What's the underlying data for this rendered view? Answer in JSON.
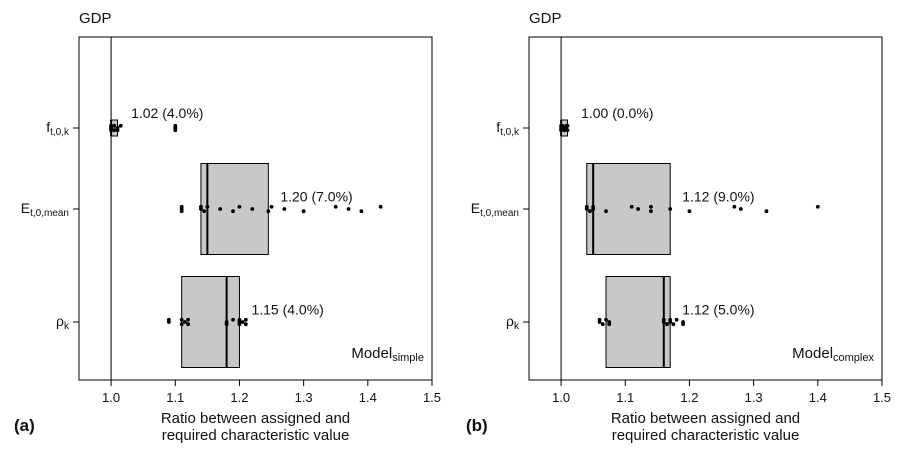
{
  "chart_data": [
    {
      "type": "boxplot",
      "panel_label": "(a)",
      "title": "GDP",
      "xlabel_lines": [
        "Ratio between assigned and",
        "required characteristic value"
      ],
      "xlim": [
        0.95,
        1.5
      ],
      "xticks": [
        "1.0",
        "1.1",
        "1.2",
        "1.3",
        "1.4",
        "1.5"
      ],
      "reference_line": 1.0,
      "model_label": {
        "main": "Model",
        "sub": "simple"
      },
      "categories": [
        {
          "label_main": "f",
          "label_sub": "t,0,k",
          "q1": 1.0,
          "median": 1.0,
          "q3": 1.01,
          "annotation": "1.02 (4.0%)",
          "points": [
            1.0,
            1.0,
            1.0,
            1.0,
            1.0,
            1.005,
            1.005,
            1.01,
            1.01,
            1.015,
            1.1,
            1.1,
            1.1,
            1.1
          ]
        },
        {
          "label_main": "E",
          "label_sub": "t,0,mean",
          "q1": 1.14,
          "median": 1.15,
          "q3": 1.245,
          "annotation": "1.20 (7.0%)",
          "points": [
            1.11,
            1.11,
            1.11,
            1.14,
            1.14,
            1.145,
            1.15,
            1.17,
            1.19,
            1.2,
            1.22,
            1.245,
            1.25,
            1.27,
            1.3,
            1.35,
            1.37,
            1.39,
            1.42
          ]
        },
        {
          "label_main": "ρ",
          "label_sub": "k",
          "q1": 1.11,
          "median": 1.18,
          "q3": 1.2,
          "annotation": "1.15 (4.0%)",
          "points": [
            1.09,
            1.09,
            1.11,
            1.11,
            1.115,
            1.12,
            1.12,
            1.18,
            1.18,
            1.19,
            1.2,
            1.2,
            1.2,
            1.205,
            1.21,
            1.21
          ]
        }
      ]
    },
    {
      "type": "boxplot",
      "panel_label": "(b)",
      "title": "GDP",
      "xlabel_lines": [
        "Ratio between assigned and",
        "required characteristic value"
      ],
      "xlim": [
        0.95,
        1.5
      ],
      "xticks": [
        "1.0",
        "1.1",
        "1.2",
        "1.3",
        "1.4",
        "1.5"
      ],
      "reference_line": 1.0,
      "model_label": {
        "main": "Model",
        "sub": "complex"
      },
      "categories": [
        {
          "label_main": "f",
          "label_sub": "t,0,k",
          "q1": 1.0,
          "median": 1.0,
          "q3": 1.01,
          "annotation": "1.00 (0.0%)",
          "points": [
            1.0,
            1.0,
            1.0,
            1.002,
            1.005,
            1.005,
            1.008,
            1.008,
            1.01,
            1.01
          ]
        },
        {
          "label_main": "E",
          "label_sub": "t,0,mean",
          "q1": 1.04,
          "median": 1.05,
          "q3": 1.17,
          "annotation": "1.12 (9.0%)",
          "points": [
            1.04,
            1.04,
            1.045,
            1.05,
            1.05,
            1.07,
            1.11,
            1.12,
            1.14,
            1.14,
            1.17,
            1.2,
            1.27,
            1.28,
            1.32,
            1.4
          ]
        },
        {
          "label_main": "ρ",
          "label_sub": "k",
          "q1": 1.07,
          "median": 1.16,
          "q3": 1.17,
          "annotation": "1.12 (5.0%)",
          "points": [
            1.06,
            1.06,
            1.065,
            1.07,
            1.075,
            1.075,
            1.16,
            1.16,
            1.165,
            1.17,
            1.17,
            1.175,
            1.18,
            1.19,
            1.19
          ]
        }
      ]
    }
  ]
}
